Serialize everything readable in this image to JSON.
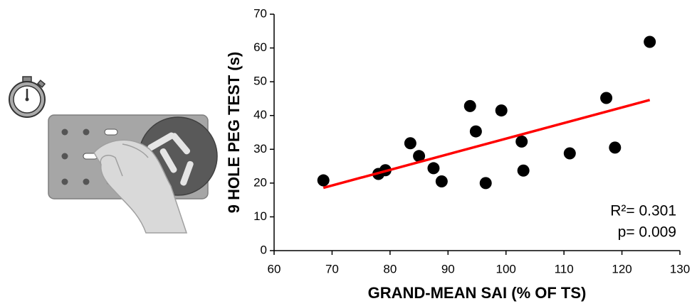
{
  "chart_data": {
    "type": "scatter",
    "x_label": "GRAND-MEAN SAI (% OF TS)",
    "y_label": "9 HOLE PEG TEST (s)",
    "xlim": [
      60,
      130
    ],
    "xticks": [
      60,
      70,
      80,
      90,
      100,
      110,
      120,
      130
    ],
    "ylim": [
      0,
      70
    ],
    "yticks": [
      0,
      10,
      20,
      30,
      40,
      50,
      60,
      70
    ],
    "grid": false,
    "series": [
      {
        "color": "#000000",
        "x": [
          68.5,
          78,
          79.2,
          83.5,
          85,
          87.5,
          88.9,
          93.8,
          94.8,
          96.5,
          99.2,
          102.7,
          103,
          111,
          117.3,
          118.8,
          124.8
        ],
        "values": [
          20.8,
          22.7,
          23.8,
          31.8,
          28,
          24.4,
          20.5,
          42.8,
          35.3,
          20,
          41.5,
          32.3,
          23.7,
          28.8,
          45.2,
          30.5,
          61.8
        ]
      }
    ],
    "trend_line": {
      "color": "#ff0000",
      "x": [
        68.5,
        124.8
      ],
      "y": [
        18.6,
        44.6
      ]
    },
    "annotations": [
      "R²= 0.301",
      "p= 0.009"
    ]
  }
}
